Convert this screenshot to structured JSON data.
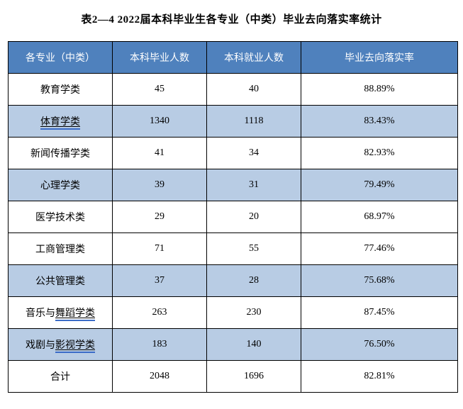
{
  "page": {
    "title": "表2—4 2022届本科毕业生各专业（中类）毕业去向落实率统计"
  },
  "colors": {
    "header_bg": "#4F81BD",
    "header_text": "#FFFFFF",
    "shaded_row_bg": "#B8CCE4",
    "border": "#000000",
    "underline_accent": "#3B6CC7"
  },
  "table": {
    "headers": [
      "各专业（中类）",
      "本科毕业人数",
      "本科就业人数",
      "毕业去向落实率"
    ],
    "rows": [
      {
        "major_plain": "教育学类",
        "major_underlined": "",
        "graduates": "45",
        "employed": "40",
        "rate": "88.89%",
        "shaded": false
      },
      {
        "major_plain": "",
        "major_underlined": "体育学类",
        "graduates": "1340",
        "employed": "1118",
        "rate": "83.43%",
        "shaded": true
      },
      {
        "major_plain": "新闻传播学类",
        "major_underlined": "",
        "graduates": "41",
        "employed": "34",
        "rate": "82.93%",
        "shaded": false
      },
      {
        "major_plain": "心理学类",
        "major_underlined": "",
        "graduates": "39",
        "employed": "31",
        "rate": "79.49%",
        "shaded": true
      },
      {
        "major_plain": "医学技术类",
        "major_underlined": "",
        "graduates": "29",
        "employed": "20",
        "rate": "68.97%",
        "shaded": false
      },
      {
        "major_plain": "工商管理类",
        "major_underlined": "",
        "graduates": "71",
        "employed": "55",
        "rate": "77.46%",
        "shaded": false
      },
      {
        "major_plain": "公共管理类",
        "major_underlined": "",
        "graduates": "37",
        "employed": "28",
        "rate": "75.68%",
        "shaded": true
      },
      {
        "major_plain": "音乐与",
        "major_underlined": "舞蹈学类",
        "graduates": "263",
        "employed": "230",
        "rate": "87.45%",
        "shaded": false
      },
      {
        "major_plain": "戏剧与",
        "major_underlined": "影视学类",
        "graduates": "183",
        "employed": "140",
        "rate": "76.50%",
        "shaded": true
      },
      {
        "major_plain": "合计",
        "major_underlined": "",
        "graduates": "2048",
        "employed": "1696",
        "rate": "82.81%",
        "shaded": false
      }
    ]
  }
}
